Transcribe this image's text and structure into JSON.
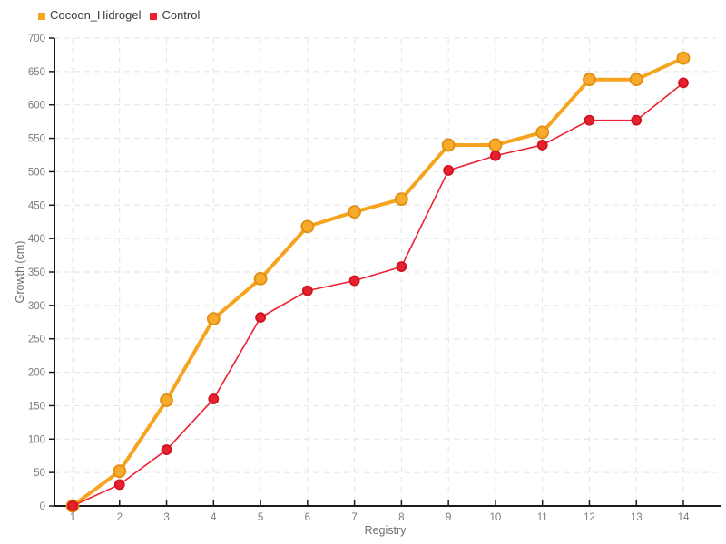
{
  "chart_data": {
    "type": "line",
    "x": [
      1,
      2,
      3,
      4,
      5,
      6,
      7,
      8,
      9,
      10,
      11,
      12,
      13,
      14
    ],
    "series": [
      {
        "name": "Cocoon_Hidrogel",
        "color": "#f6a41f",
        "marker_fill": "#f8aa2c",
        "marker_stroke": "#df8e11",
        "marker_radius": 6.5,
        "line_width": 4,
        "values": [
          0,
          52,
          158,
          280,
          340,
          418,
          440,
          459,
          540,
          540,
          559,
          638,
          638,
          670
        ]
      },
      {
        "name": "Control",
        "color": "#ec2131",
        "marker_fill": "#e8212e",
        "marker_stroke": "#cf1322",
        "marker_radius": 5,
        "line_width": 1.6,
        "values": [
          0,
          32,
          84,
          160,
          282,
          322,
          337,
          358,
          502,
          524,
          540,
          577,
          577,
          633
        ]
      }
    ],
    "title": "",
    "xlabel": "Registry",
    "ylabel": "Growth (cm)",
    "ylim": [
      0,
      700
    ],
    "ytick_step": 50,
    "xticks": [
      1,
      2,
      3,
      4,
      5,
      6,
      7,
      8,
      9,
      10,
      11,
      12,
      13,
      14
    ],
    "grid": "dashed",
    "legend_position": "top-left",
    "background": "#ffffff",
    "axis_color": "#1a1a1a",
    "grid_color": "#e3e3e3",
    "tick_label_color": "#7c7c7c",
    "axis_label_color": "#6e6e6e",
    "legend_text_color": "#3c3c3c"
  }
}
